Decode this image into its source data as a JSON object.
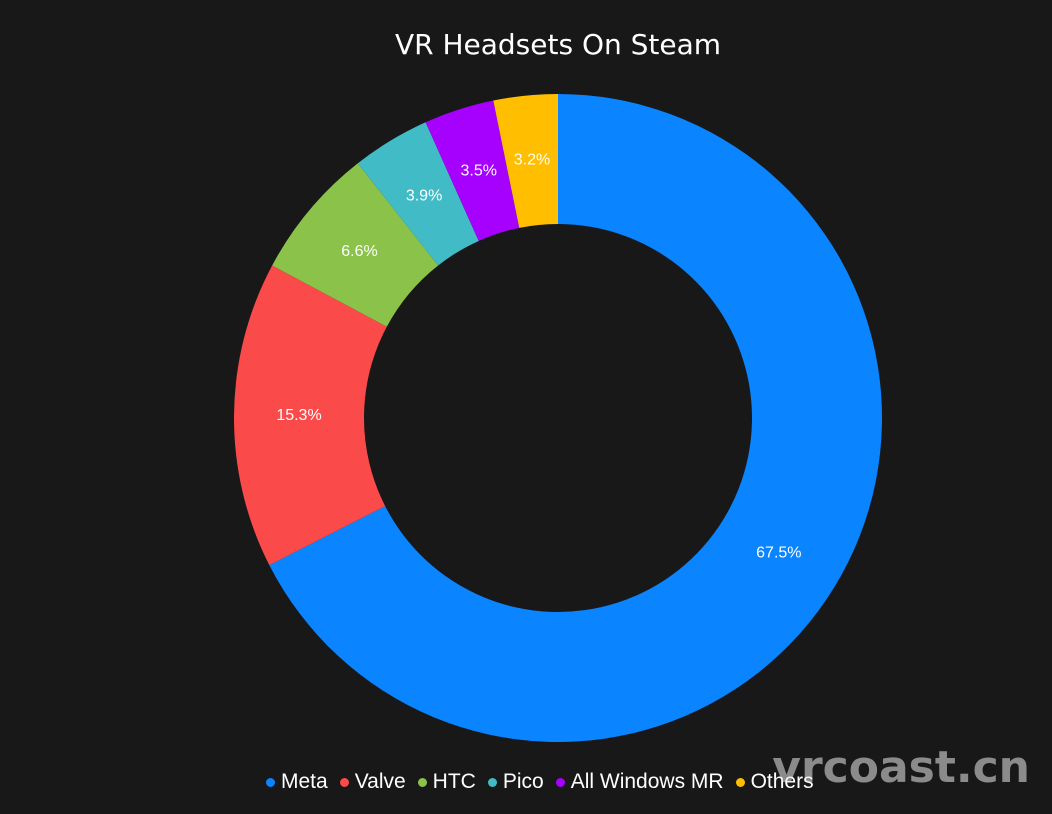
{
  "chart_data": {
    "type": "pie",
    "title": "VR Headsets On Steam",
    "donut": true,
    "legend_position": "bottom",
    "slices": [
      {
        "label": "Meta",
        "value": 67.5,
        "display": "67.5%",
        "color": "#0A84FF"
      },
      {
        "label": "Valve",
        "value": 15.3,
        "display": "15.3%",
        "color": "#FA4A49"
      },
      {
        "label": "HTC",
        "value": 6.6,
        "display": "6.6%",
        "color": "#8BC34A"
      },
      {
        "label": "Pico",
        "value": 3.9,
        "display": "3.9%",
        "color": "#41BCC6"
      },
      {
        "label": "All Windows MR",
        "value": 3.5,
        "display": "3.5%",
        "color": "#A600FF"
      },
      {
        "label": "Others",
        "value": 3.2,
        "display": "3.2%",
        "color": "#FFBF00"
      }
    ]
  },
  "watermark": "vrcoast.cn"
}
